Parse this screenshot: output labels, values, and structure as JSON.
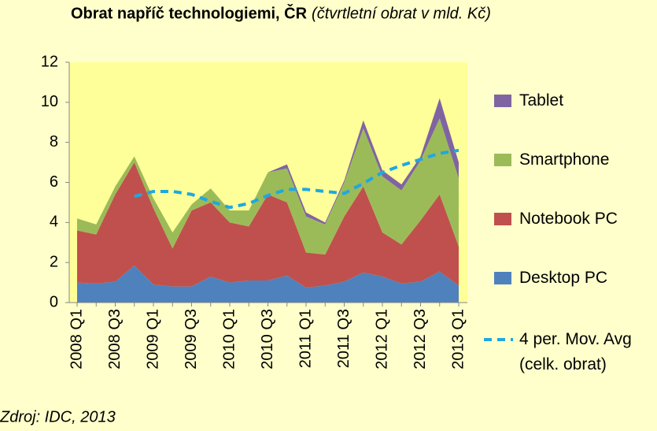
{
  "chart_data": {
    "type": "stacked-area",
    "title": "Obrat napříč technologiemi, ČR",
    "subtitle": "(čtvrtletní obrat v mld. Kč)",
    "source": "Zdroj: IDC, 2013",
    "categories": [
      "2008 Q1",
      null,
      "2008 Q3",
      null,
      "2009 Q1",
      null,
      "2009 Q3",
      null,
      "2010 Q1",
      null,
      "2010 Q3",
      null,
      "2011 Q1",
      null,
      "2011 Q3",
      null,
      "2012 Q1",
      null,
      "2012 Q3",
      null,
      "2013 Q1"
    ],
    "series": [
      {
        "name": "Desktop PC",
        "color": "#4f81bd",
        "values": [
          1.0,
          0.95,
          1.05,
          1.85,
          0.9,
          0.8,
          0.8,
          1.3,
          1.0,
          1.1,
          1.1,
          1.35,
          0.75,
          0.85,
          1.05,
          1.5,
          1.3,
          0.95,
          1.05,
          1.55,
          0.85
        ]
      },
      {
        "name": "Notebook PC",
        "color": "#c0504d",
        "values": [
          2.6,
          2.45,
          4.35,
          5.15,
          3.8,
          1.9,
          3.8,
          3.7,
          3.0,
          2.7,
          4.3,
          3.65,
          1.75,
          1.55,
          3.25,
          4.3,
          2.2,
          1.95,
          3.05,
          3.85,
          1.95
        ]
      },
      {
        "name": "Smartphone",
        "color": "#9bbb59",
        "values": [
          0.6,
          0.5,
          0.4,
          0.3,
          0.5,
          0.8,
          0.3,
          0.7,
          0.6,
          0.8,
          1.1,
          1.7,
          1.8,
          1.5,
          1.7,
          2.9,
          2.8,
          2.7,
          3.0,
          3.8,
          3.4
        ]
      },
      {
        "name": "Tablet",
        "color": "#8064a2",
        "values": [
          0,
          0,
          0,
          0,
          0,
          0,
          0,
          0,
          0,
          0,
          0,
          0.2,
          0.2,
          0.1,
          0.1,
          0.4,
          0.3,
          0.3,
          0.2,
          1.0,
          0.8
        ]
      }
    ],
    "moving_average": {
      "name": "4 per. Mov. Avg (celk. obrat)",
      "color": "#1fa8e0",
      "values": [
        null,
        null,
        null,
        5.3,
        5.55,
        5.55,
        5.4,
        5.05,
        4.75,
        4.95,
        5.35,
        5.65,
        5.65,
        5.55,
        5.45,
        5.95,
        6.5,
        6.85,
        7.15,
        7.45,
        7.6
      ]
    },
    "ylim": [
      0,
      12
    ],
    "yticks": [
      0,
      2,
      4,
      6,
      8,
      10,
      12
    ],
    "grid": false
  }
}
